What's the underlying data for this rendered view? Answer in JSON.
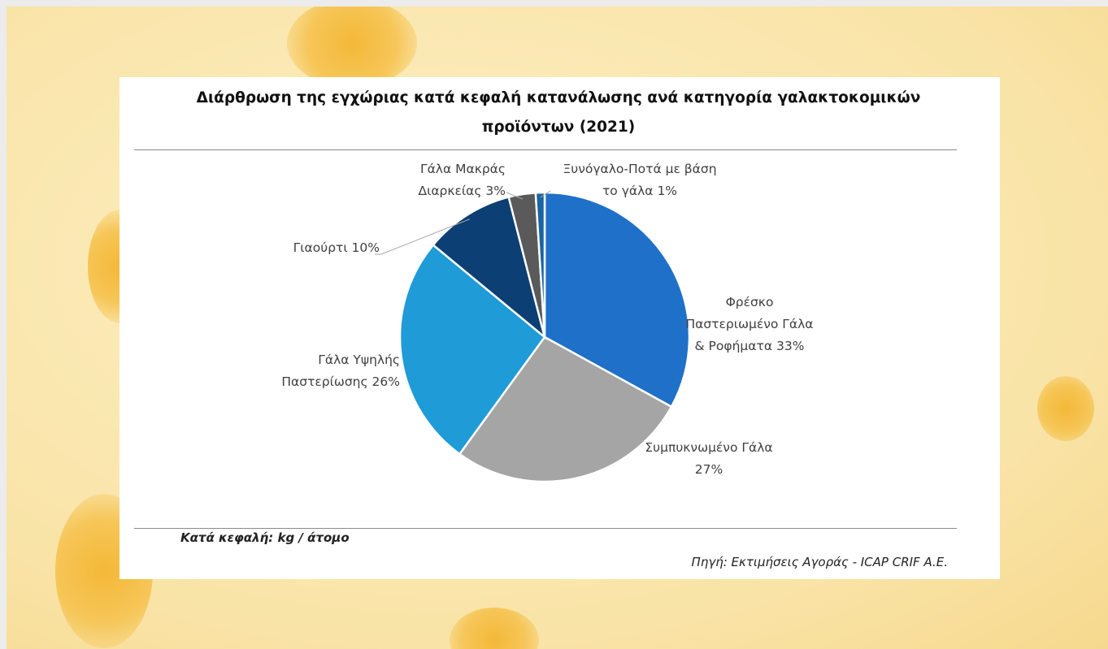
{
  "chart_data": {
    "type": "pie",
    "title": "Διάρθρωση της εγχώριας κατά κεφαλή κατανάλωσης ανά κατηγορία γαλακτοκομικών προϊόντων (2021)",
    "categories": [
      "Φρέσκο Παστεριωμένο Γάλα & Ροφήματα",
      "Συμπυκνωμένο Γάλα",
      "Γάλα Υψηλής Παστερίωσης",
      "Γιαούρτι",
      "Γάλα Μακράς Διαρκείας",
      "Ξυνόγαλο-Ποτά με βάση το γάλα"
    ],
    "values": [
      33,
      27,
      26,
      10,
      3,
      1
    ],
    "value_labels": [
      "33%",
      "27%",
      "26%",
      "10%",
      "3%",
      "1%"
    ],
    "colors": [
      "#1f70c8",
      "#a5a5a5",
      "#1f9bd7",
      "#0c3f73",
      "#5a5a5a",
      "#1a649f"
    ],
    "footnote": "Κατά κεφαλή: kg / άτομο",
    "source": "Πηγή: Εκτιμήσεις Αγοράς - ICAP CRIF A.E."
  }
}
